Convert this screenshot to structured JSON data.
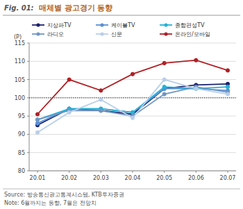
{
  "chart_data": {
    "type": "line",
    "figure_label": "Fig. 01:",
    "title": "매체별 광고경기 동향",
    "y_label": "(P)",
    "categories": [
      "20.01",
      "20.02",
      "20.03",
      "20.04",
      "20.05",
      "20.06",
      "20.07"
    ],
    "series": [
      {
        "name": "지상파TV",
        "color": "#1c226e",
        "marker": "circle",
        "values": [
          92.5,
          97,
          96.5,
          95.5,
          102.5,
          103.5,
          103.8
        ]
      },
      {
        "name": "케이블TV",
        "color": "#5b8fd6",
        "marker": "circle",
        "values": [
          93,
          97,
          97,
          96,
          102.5,
          102.5,
          102
        ]
      },
      {
        "name": "종합편성TV",
        "color": "#22b3d6",
        "marker": "circle",
        "values": [
          94,
          97,
          97,
          96,
          103,
          102.5,
          103
        ]
      },
      {
        "name": "라디오",
        "color": "#7096c2",
        "marker": "circle",
        "values": [
          94,
          96.5,
          96.5,
          95,
          101,
          103,
          101.5
        ]
      },
      {
        "name": "신문",
        "color": "#b9cfea",
        "marker": "circle",
        "values": [
          90.5,
          96,
          99.5,
          94.5,
          105,
          102.5,
          101
        ]
      },
      {
        "name": "온라인/모바일",
        "color": "#b11f24",
        "marker": "circle",
        "values": [
          95.5,
          105,
          102,
          106.5,
          109.5,
          110.3,
          107.5
        ]
      }
    ],
    "ylim": [
      80,
      115
    ],
    "yticks": [
      80,
      85,
      90,
      95,
      100,
      105,
      110,
      115
    ],
    "grid": true,
    "legend": "top",
    "annotations": [
      {
        "y": 100,
        "line_style": "dotted"
      }
    ],
    "source": "Source: 방송통신광고통계시스템, KTB투자증권",
    "note": "Note: 6월까지는 동향, 7월은 전망치"
  }
}
